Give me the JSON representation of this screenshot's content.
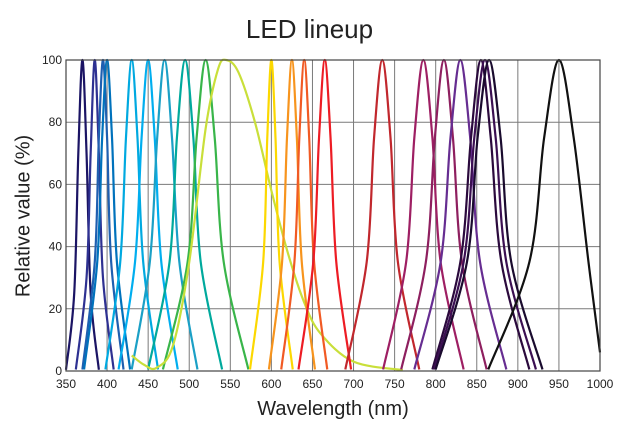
{
  "chart_data": {
    "type": "line",
    "title": "LED lineup",
    "xlabel": "Wavelength (nm)",
    "ylabel": "Relative value (%)",
    "xlim": [
      350,
      1000
    ],
    "ylim": [
      0,
      100
    ],
    "xticks": [
      350,
      400,
      450,
      500,
      550,
      600,
      650,
      700,
      750,
      800,
      850,
      900,
      950,
      1000
    ],
    "xtick_labels": [
      "350",
      "400",
      "450",
      "500",
      "550",
      "600",
      "650",
      "700",
      "750",
      "800",
      "850",
      "900",
      "950",
      "1000"
    ],
    "yticks": [
      0,
      20,
      40,
      60,
      80,
      100
    ],
    "ytick_labels": [
      "0",
      "20",
      "40",
      "60",
      "80",
      "100"
    ],
    "grid": true,
    "legend": "none",
    "series": [
      {
        "peak": 370,
        "fwhm": 10,
        "color": "#1b1464",
        "values": [
          [
            350,
            0.4
          ],
          [
            360,
            25
          ],
          [
            365,
            70
          ],
          [
            370,
            100
          ],
          [
            375,
            70
          ],
          [
            380,
            25
          ],
          [
            390,
            0.4
          ]
        ]
      },
      {
        "peak": 385,
        "fwhm": 12,
        "color": "#2e3192",
        "values": [
          [
            362,
            0.5
          ],
          [
            375,
            30
          ],
          [
            380,
            70
          ],
          [
            385,
            100
          ],
          [
            390,
            70
          ],
          [
            395,
            30
          ],
          [
            408,
            0.5
          ]
        ]
      },
      {
        "peak": 395,
        "fwhm": 14,
        "color": "#1f5fb0",
        "values": [
          [
            370,
            0.5
          ],
          [
            385,
            35
          ],
          [
            390,
            75
          ],
          [
            395,
            100
          ],
          [
            400,
            75
          ],
          [
            405,
            35
          ],
          [
            420,
            0.5
          ]
        ]
      },
      {
        "peak": 400,
        "fwhm": 16,
        "color": "#0072bc",
        "values": [
          [
            372,
            0.5
          ],
          [
            388,
            35
          ],
          [
            394,
            75
          ],
          [
            400,
            100
          ],
          [
            406,
            75
          ],
          [
            412,
            35
          ],
          [
            428,
            0.5
          ]
        ]
      },
      {
        "peak": 430,
        "fwhm": 18,
        "color": "#00a9e0",
        "values": [
          [
            398,
            0.5
          ],
          [
            416,
            35
          ],
          [
            423,
            75
          ],
          [
            430,
            100
          ],
          [
            437,
            75
          ],
          [
            444,
            35
          ],
          [
            462,
            0.5
          ]
        ]
      },
      {
        "peak": 450,
        "fwhm": 20,
        "color": "#00aeef",
        "values": [
          [
            414,
            0.5
          ],
          [
            434,
            35
          ],
          [
            442,
            75
          ],
          [
            450,
            100
          ],
          [
            458,
            75
          ],
          [
            466,
            35
          ],
          [
            486,
            0.5
          ]
        ]
      },
      {
        "peak": 470,
        "fwhm": 22,
        "color": "#1ba0c6",
        "values": [
          [
            430,
            0.5
          ],
          [
            452,
            35
          ],
          [
            461,
            75
          ],
          [
            470,
            100
          ],
          [
            479,
            75
          ],
          [
            488,
            35
          ],
          [
            510,
            0.5
          ]
        ]
      },
      {
        "peak": 495,
        "fwhm": 26,
        "color": "#00a99d",
        "values": [
          [
            450,
            0.5
          ],
          [
            476,
            35
          ],
          [
            485,
            75
          ],
          [
            495,
            100
          ],
          [
            505,
            75
          ],
          [
            514,
            35
          ],
          [
            540,
            0.5
          ]
        ]
      },
      {
        "peak": 520,
        "fwhm": 30,
        "color": "#39b54a",
        "values": [
          [
            468,
            0.5
          ],
          [
            498,
            35
          ],
          [
            509,
            75
          ],
          [
            520,
            100
          ],
          [
            531,
            75
          ],
          [
            542,
            35
          ],
          [
            572,
            0.5
          ]
        ]
      },
      {
        "peak": 545,
        "fwhm": 80,
        "color": "#c9df3a",
        "values": [
          [
            430,
            5
          ],
          [
            445,
            2
          ],
          [
            460,
            1
          ],
          [
            480,
            8
          ],
          [
            500,
            35
          ],
          [
            520,
            78
          ],
          [
            535,
            97
          ],
          [
            545,
            100
          ],
          [
            560,
            96
          ],
          [
            580,
            80
          ],
          [
            600,
            58
          ],
          [
            620,
            38
          ],
          [
            640,
            22
          ],
          [
            660,
            12
          ],
          [
            700,
            3
          ],
          [
            760,
            0.3
          ]
        ]
      },
      {
        "peak": 600,
        "fwhm": 14,
        "color": "#fcd800",
        "values": [
          [
            574,
            0.5
          ],
          [
            590,
            35
          ],
          [
            595,
            75
          ],
          [
            600,
            100
          ],
          [
            605,
            75
          ],
          [
            610,
            35
          ],
          [
            626,
            0.5
          ]
        ]
      },
      {
        "peak": 625,
        "fwhm": 16,
        "color": "#f7941d",
        "values": [
          [
            597,
            0.5
          ],
          [
            613,
            35
          ],
          [
            619,
            75
          ],
          [
            625,
            100
          ],
          [
            631,
            75
          ],
          [
            637,
            35
          ],
          [
            653,
            0.5
          ]
        ]
      },
      {
        "peak": 640,
        "fwhm": 16,
        "color": "#f15a24",
        "values": [
          [
            612,
            0.5
          ],
          [
            628,
            35
          ],
          [
            634,
            75
          ],
          [
            640,
            100
          ],
          [
            646,
            75
          ],
          [
            652,
            35
          ],
          [
            668,
            0.5
          ]
        ]
      },
      {
        "peak": 665,
        "fwhm": 18,
        "color": "#ed1c24",
        "values": [
          [
            633,
            0.5
          ],
          [
            651,
            35
          ],
          [
            658,
            75
          ],
          [
            665,
            100
          ],
          [
            672,
            75
          ],
          [
            679,
            35
          ],
          [
            697,
            0.5
          ]
        ]
      },
      {
        "peak": 735,
        "fwhm": 26,
        "color": "#c1272d",
        "values": [
          [
            690,
            0.5
          ],
          [
            716,
            35
          ],
          [
            725,
            75
          ],
          [
            735,
            100
          ],
          [
            745,
            75
          ],
          [
            754,
            35
          ],
          [
            780,
            0.5
          ]
        ]
      },
      {
        "peak": 785,
        "fwhm": 28,
        "color": "#9e1f63",
        "values": [
          [
            736,
            0.5
          ],
          [
            764,
            35
          ],
          [
            774,
            75
          ],
          [
            785,
            100
          ],
          [
            796,
            75
          ],
          [
            806,
            35
          ],
          [
            834,
            0.5
          ]
        ]
      },
      {
        "peak": 810,
        "fwhm": 30,
        "color": "#8e1f5f",
        "values": [
          [
            758,
            0.5
          ],
          [
            788,
            35
          ],
          [
            799,
            75
          ],
          [
            810,
            100
          ],
          [
            821,
            75
          ],
          [
            832,
            35
          ],
          [
            862,
            0.5
          ]
        ]
      },
      {
        "peak": 830,
        "fwhm": 32,
        "color": "#662d91",
        "values": [
          [
            774,
            0.5
          ],
          [
            806,
            35
          ],
          [
            818,
            75
          ],
          [
            830,
            100
          ],
          [
            842,
            75
          ],
          [
            854,
            35
          ],
          [
            886,
            0.5
          ]
        ]
      },
      {
        "peak": 855,
        "fwhm": 34,
        "color": "#2b0a3d",
        "values": [
          [
            796,
            0.5
          ],
          [
            830,
            35
          ],
          [
            843,
            75
          ],
          [
            855,
            100
          ],
          [
            867,
            75
          ],
          [
            880,
            35
          ],
          [
            914,
            0.5
          ]
        ]
      },
      {
        "peak": 860,
        "fwhm": 36,
        "color": "#3b0f52",
        "values": [
          [
            798,
            0.5
          ],
          [
            834,
            35
          ],
          [
            847,
            75
          ],
          [
            860,
            100
          ],
          [
            873,
            75
          ],
          [
            886,
            35
          ],
          [
            922,
            0.5
          ]
        ]
      },
      {
        "peak": 865,
        "fwhm": 38,
        "color": "#1a0b2e",
        "values": [
          [
            800,
            0.5
          ],
          [
            838,
            35
          ],
          [
            851,
            75
          ],
          [
            865,
            100
          ],
          [
            879,
            75
          ],
          [
            892,
            35
          ],
          [
            930,
            0.5
          ]
        ]
      },
      {
        "peak": 950,
        "fwhm": 50,
        "color": "#111111",
        "values": [
          [
            864,
            0.5
          ],
          [
            914,
            35
          ],
          [
            932,
            75
          ],
          [
            950,
            100
          ],
          [
            968,
            75
          ],
          [
            986,
            35
          ],
          [
            1000,
            6
          ]
        ]
      }
    ]
  }
}
